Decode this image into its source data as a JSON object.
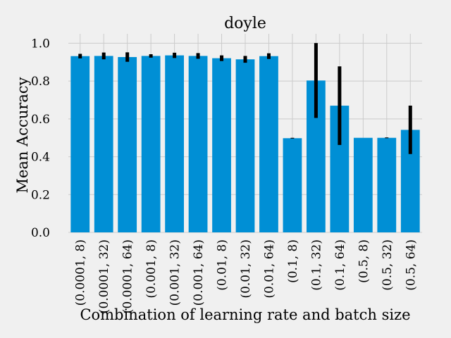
{
  "chart_data": {
    "type": "bar",
    "title": "doyle",
    "xlabel": "Combination of learning rate and batch size",
    "ylabel": "Mean Accuracy",
    "ylim": [
      0,
      1.05
    ],
    "yticks": [
      "0.0",
      "0.2",
      "0.4",
      "0.6",
      "0.8",
      "1.0"
    ],
    "grid": true,
    "bar_color": "#008fd5",
    "error_color": "#000000",
    "categories": [
      "(0.0001, 8)",
      "(0.0001, 32)",
      "(0.0001, 64)",
      "(0.001, 8)",
      "(0.001, 32)",
      "(0.001, 64)",
      "(0.01, 8)",
      "(0.01, 32)",
      "(0.01, 64)",
      "(0.1, 8)",
      "(0.1, 32)",
      "(0.1, 64)",
      "(0.5, 8)",
      "(0.5, 32)",
      "(0.5, 64)"
    ],
    "values": [
      0.932,
      0.933,
      0.927,
      0.933,
      0.936,
      0.933,
      0.921,
      0.915,
      0.932,
      0.498,
      0.803,
      0.67,
      0.5,
      0.5,
      0.542
    ],
    "errors": [
      0.012,
      0.018,
      0.025,
      0.009,
      0.014,
      0.015,
      0.015,
      0.018,
      0.015,
      0.002,
      0.198,
      0.208,
      0.0,
      0.002,
      0.128
    ]
  }
}
